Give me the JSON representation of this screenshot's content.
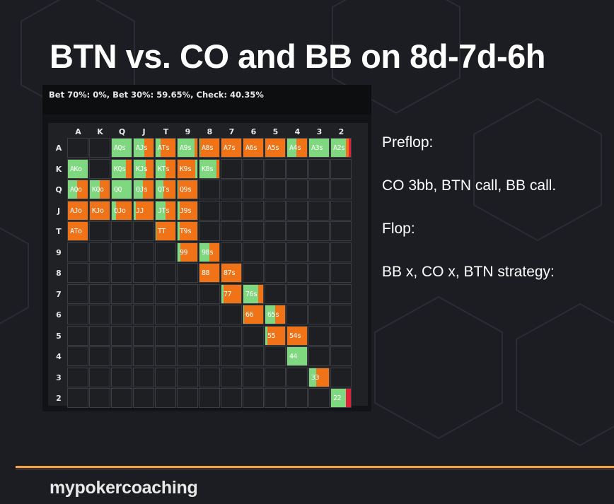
{
  "slide": {
    "title": "BTN vs. CO and BB on 8d-7d-6h",
    "info_lines": [
      "Preflop:",
      "CO 3bb, BTN call, BB call.",
      "Flop:",
      "BB x, CO x, BTN strategy:"
    ],
    "logo": "mypokercoaching"
  },
  "strategy": {
    "summary": "Bet 70%: 0%, Bet 30%: 59.65%, Check: 40.35%",
    "colors": {
      "bet_30": "#7fd87f",
      "check": "#f07318",
      "other": "#e3203a"
    }
  },
  "matrix": {
    "ranks": [
      "A",
      "K",
      "Q",
      "J",
      "T",
      "9",
      "8",
      "7",
      "6",
      "5",
      "4",
      "3",
      "2"
    ],
    "row_labels": [
      "A",
      "K",
      "Q",
      "J",
      "T",
      "9",
      "8",
      "7",
      "6",
      "5",
      "4",
      "3",
      "2"
    ],
    "cells": [
      {
        "hand": "AQs",
        "r": 0,
        "c": 2,
        "mix": [
          [
            "g",
            1
          ]
        ]
      },
      {
        "hand": "AJs",
        "r": 0,
        "c": 3,
        "mix": [
          [
            "g",
            0.55
          ],
          [
            "o",
            0.45
          ]
        ]
      },
      {
        "hand": "ATs",
        "r": 0,
        "c": 4,
        "mix": [
          [
            "g",
            0.25
          ],
          [
            "o",
            0.75
          ]
        ]
      },
      {
        "hand": "A9s",
        "r": 0,
        "c": 5,
        "mix": [
          [
            "g",
            0.85
          ],
          [
            "o",
            0.15
          ]
        ]
      },
      {
        "hand": "A8s",
        "r": 0,
        "c": 6,
        "mix": [
          [
            "g",
            0.05
          ],
          [
            "o",
            0.95
          ]
        ]
      },
      {
        "hand": "A7s",
        "r": 0,
        "c": 7,
        "mix": [
          [
            "o",
            1
          ]
        ]
      },
      {
        "hand": "A6s",
        "r": 0,
        "c": 8,
        "mix": [
          [
            "o",
            1
          ]
        ]
      },
      {
        "hand": "A5s",
        "r": 0,
        "c": 9,
        "mix": [
          [
            "o",
            1
          ]
        ]
      },
      {
        "hand": "A4s",
        "r": 0,
        "c": 10,
        "mix": [
          [
            "g",
            0.45
          ],
          [
            "o",
            0.55
          ]
        ]
      },
      {
        "hand": "A3s",
        "r": 0,
        "c": 11,
        "mix": [
          [
            "g",
            1
          ]
        ]
      },
      {
        "hand": "A2s",
        "r": 0,
        "c": 12,
        "mix": [
          [
            "g",
            0.75
          ],
          [
            "o",
            0.15
          ],
          [
            "r",
            0.1
          ]
        ]
      },
      {
        "hand": "AKo",
        "r": 1,
        "c": 0,
        "mix": [
          [
            "g",
            1
          ]
        ]
      },
      {
        "hand": "KQs",
        "r": 1,
        "c": 2,
        "mix": [
          [
            "g",
            0.7
          ],
          [
            "o",
            0.3
          ]
        ]
      },
      {
        "hand": "KJs",
        "r": 1,
        "c": 3,
        "mix": [
          [
            "g",
            0.6
          ],
          [
            "o",
            0.4
          ]
        ]
      },
      {
        "hand": "KTs",
        "r": 1,
        "c": 4,
        "mix": [
          [
            "g",
            0.5
          ],
          [
            "o",
            0.5
          ]
        ]
      },
      {
        "hand": "K9s",
        "r": 1,
        "c": 5,
        "mix": [
          [
            "o",
            0.9
          ],
          [
            "g",
            0.1
          ]
        ]
      },
      {
        "hand": "K8s",
        "r": 1,
        "c": 6,
        "mix": [
          [
            "g",
            0.85
          ],
          [
            "o",
            0.15
          ]
        ]
      },
      {
        "hand": "AQo",
        "r": 2,
        "c": 0,
        "mix": [
          [
            "g",
            0.45
          ],
          [
            "o",
            0.55
          ]
        ]
      },
      {
        "hand": "KQo",
        "r": 2,
        "c": 1,
        "mix": [
          [
            "g",
            0.5
          ],
          [
            "o",
            0.5
          ]
        ]
      },
      {
        "hand": "QQ",
        "r": 2,
        "c": 2,
        "mix": [
          [
            "g",
            1
          ]
        ]
      },
      {
        "hand": "QJs",
        "r": 2,
        "c": 3,
        "mix": [
          [
            "g",
            0.45
          ],
          [
            "o",
            0.55
          ]
        ]
      },
      {
        "hand": "QTs",
        "r": 2,
        "c": 4,
        "mix": [
          [
            "g",
            0.4
          ],
          [
            "o",
            0.6
          ]
        ]
      },
      {
        "hand": "Q9s",
        "r": 2,
        "c": 5,
        "mix": [
          [
            "g",
            0.05
          ],
          [
            "o",
            0.95
          ]
        ]
      },
      {
        "hand": "AJo",
        "r": 3,
        "c": 0,
        "mix": [
          [
            "o",
            1
          ]
        ]
      },
      {
        "hand": "KJo",
        "r": 3,
        "c": 1,
        "mix": [
          [
            "o",
            1
          ]
        ]
      },
      {
        "hand": "QJo",
        "r": 3,
        "c": 2,
        "mix": [
          [
            "g",
            0.2
          ],
          [
            "o",
            0.8
          ]
        ]
      },
      {
        "hand": "JJ",
        "r": 3,
        "c": 3,
        "mix": [
          [
            "g",
            0.1
          ],
          [
            "o",
            0.9
          ]
        ]
      },
      {
        "hand": "JTs",
        "r": 3,
        "c": 4,
        "mix": [
          [
            "g",
            0.5
          ],
          [
            "o",
            0.5
          ]
        ]
      },
      {
        "hand": "J9s",
        "r": 3,
        "c": 5,
        "mix": [
          [
            "g",
            0.1
          ],
          [
            "o",
            0.9
          ]
        ]
      },
      {
        "hand": "ATo",
        "r": 4,
        "c": 0,
        "mix": [
          [
            "o",
            1
          ]
        ]
      },
      {
        "hand": "TT",
        "r": 4,
        "c": 4,
        "mix": [
          [
            "g",
            0.05
          ],
          [
            "o",
            0.95
          ]
        ]
      },
      {
        "hand": "T9s",
        "r": 4,
        "c": 5,
        "mix": [
          [
            "g",
            0.1
          ],
          [
            "o",
            0.9
          ]
        ]
      },
      {
        "hand": "99",
        "r": 5,
        "c": 5,
        "mix": [
          [
            "g",
            0.15
          ],
          [
            "o",
            0.85
          ]
        ]
      },
      {
        "hand": "98s",
        "r": 5,
        "c": 6,
        "mix": [
          [
            "g",
            0.5
          ],
          [
            "o",
            0.5
          ]
        ]
      },
      {
        "hand": "88",
        "r": 6,
        "c": 6,
        "mix": [
          [
            "o",
            1
          ]
        ]
      },
      {
        "hand": "87s",
        "r": 6,
        "c": 7,
        "mix": [
          [
            "o",
            1
          ]
        ]
      },
      {
        "hand": "77",
        "r": 7,
        "c": 7,
        "mix": [
          [
            "g",
            0.1
          ],
          [
            "o",
            0.9
          ]
        ]
      },
      {
        "hand": "76s",
        "r": 7,
        "c": 8,
        "mix": [
          [
            "g",
            0.75
          ],
          [
            "o",
            0.25
          ]
        ]
      },
      {
        "hand": "66",
        "r": 8,
        "c": 8,
        "mix": [
          [
            "g",
            0.05
          ],
          [
            "o",
            0.95
          ]
        ]
      },
      {
        "hand": "65s",
        "r": 8,
        "c": 9,
        "mix": [
          [
            "g",
            0.5
          ],
          [
            "o",
            0.5
          ]
        ]
      },
      {
        "hand": "55",
        "r": 9,
        "c": 9,
        "mix": [
          [
            "g",
            0.1
          ],
          [
            "o",
            0.9
          ]
        ]
      },
      {
        "hand": "54s",
        "r": 9,
        "c": 10,
        "mix": [
          [
            "o",
            1
          ]
        ]
      },
      {
        "hand": "44",
        "r": 10,
        "c": 10,
        "mix": [
          [
            "g",
            1
          ]
        ]
      },
      {
        "hand": "33",
        "r": 11,
        "c": 11,
        "mix": [
          [
            "g",
            0.35
          ],
          [
            "o",
            0.65
          ]
        ]
      },
      {
        "hand": "22",
        "r": 12,
        "c": 12,
        "mix": [
          [
            "g",
            0.75
          ],
          [
            "r",
            0.25
          ]
        ]
      }
    ]
  }
}
